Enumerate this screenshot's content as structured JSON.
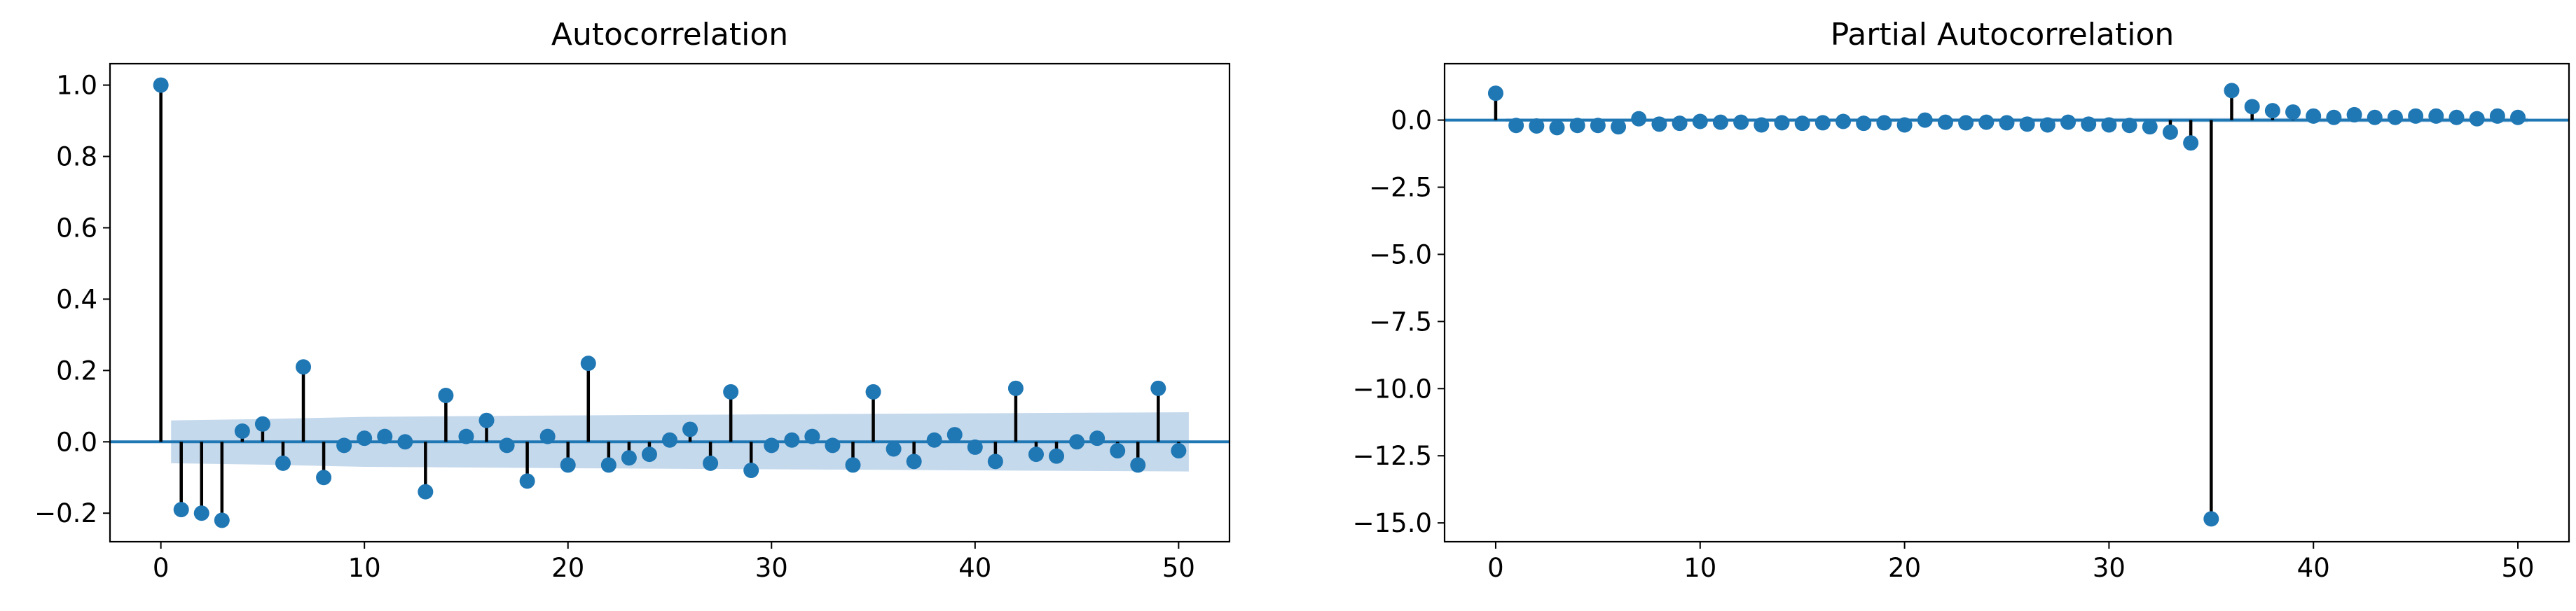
{
  "chart_data": [
    {
      "type": "stem",
      "title": "Autocorrelation",
      "xlabel": "",
      "ylabel": "",
      "xlim": [
        -2.5,
        52.5
      ],
      "ylim": [
        -0.28,
        1.06
      ],
      "xticks": [
        0,
        10,
        20,
        30,
        40,
        50
      ],
      "xtick_labels": [
        "0",
        "10",
        "20",
        "30",
        "40",
        "50"
      ],
      "yticks": [
        -0.2,
        0.0,
        0.2,
        0.4,
        0.6,
        0.8,
        1.0
      ],
      "ytick_labels": [
        "−0.2",
        "0.0",
        "0.2",
        "0.4",
        "0.6",
        "0.8",
        "1.0"
      ],
      "grid": false,
      "series": [
        {
          "x": [
            0,
            1,
            2,
            3,
            4,
            5,
            6,
            7,
            8,
            9,
            10,
            11,
            12,
            13,
            14,
            15,
            16,
            17,
            18,
            19,
            20,
            21,
            22,
            23,
            24,
            25,
            26,
            27,
            28,
            29,
            30,
            31,
            32,
            33,
            34,
            35,
            36,
            37,
            38,
            39,
            40,
            41,
            42,
            43,
            44,
            45,
            46,
            47,
            48,
            49,
            50
          ],
          "values": [
            1.0,
            -0.19,
            -0.2,
            -0.22,
            0.03,
            0.05,
            -0.06,
            0.21,
            -0.1,
            -0.01,
            0.01,
            0.015,
            0.0,
            -0.14,
            0.13,
            0.015,
            0.06,
            -0.01,
            -0.11,
            0.015,
            -0.065,
            0.22,
            -0.065,
            -0.045,
            -0.035,
            0.005,
            0.035,
            -0.06,
            0.14,
            -0.08,
            -0.01,
            0.005,
            0.015,
            -0.01,
            -0.065,
            0.14,
            -0.02,
            -0.055,
            0.005,
            0.02,
            -0.015,
            -0.055,
            0.15,
            -0.035,
            -0.04,
            0.0,
            0.01,
            -0.025,
            -0.065,
            0.15,
            -0.025
          ]
        }
      ],
      "confidence_band": {
        "x": [
          0.5,
          5,
          10,
          20,
          30,
          40,
          50.5
        ],
        "upper": [
          0.06,
          0.064,
          0.07,
          0.074,
          0.077,
          0.08,
          0.083
        ],
        "lower": [
          -0.06,
          -0.064,
          -0.07,
          -0.074,
          -0.077,
          -0.08,
          -0.083
        ]
      },
      "colors": {
        "marker": "#1f77b4",
        "stem": "#000000",
        "band": "#c5d9ec",
        "baseline": "#1f77b4"
      }
    },
    {
      "type": "stem",
      "title": "Partial Autocorrelation",
      "xlabel": "",
      "ylabel": "",
      "xlim": [
        -2.5,
        52.5
      ],
      "ylim": [
        -15.7,
        2.1
      ],
      "xticks": [
        0,
        10,
        20,
        30,
        40,
        50
      ],
      "xtick_labels": [
        "0",
        "10",
        "20",
        "30",
        "40",
        "50"
      ],
      "yticks": [
        -15.0,
        -12.5,
        -10.0,
        -7.5,
        -5.0,
        -2.5,
        0.0
      ],
      "ytick_labels": [
        "−15.0",
        "−12.5",
        "−10.0",
        "−7.5",
        "−5.0",
        "−2.5",
        "0.0"
      ],
      "grid": false,
      "series": [
        {
          "x": [
            0,
            1,
            2,
            3,
            4,
            5,
            6,
            7,
            8,
            9,
            10,
            11,
            12,
            13,
            14,
            15,
            16,
            17,
            18,
            19,
            20,
            21,
            22,
            23,
            24,
            25,
            26,
            27,
            28,
            29,
            30,
            31,
            32,
            33,
            34,
            35,
            36,
            37,
            38,
            39,
            40,
            41,
            42,
            43,
            44,
            45,
            46,
            47,
            48,
            49,
            50
          ],
          "values": [
            1.0,
            -0.2,
            -0.22,
            -0.28,
            -0.2,
            -0.2,
            -0.25,
            0.05,
            -0.15,
            -0.12,
            -0.05,
            -0.08,
            -0.08,
            -0.18,
            -0.1,
            -0.12,
            -0.1,
            -0.05,
            -0.12,
            -0.1,
            -0.18,
            0.0,
            -0.08,
            -0.1,
            -0.08,
            -0.1,
            -0.15,
            -0.18,
            -0.08,
            -0.15,
            -0.18,
            -0.2,
            -0.25,
            -0.45,
            -0.85,
            -14.85,
            1.1,
            0.5,
            0.35,
            0.3,
            0.15,
            0.1,
            0.2,
            0.1,
            0.1,
            0.15,
            0.15,
            0.1,
            0.05,
            0.15,
            0.1
          ]
        }
      ],
      "confidence_band": {
        "x": [
          0.5,
          10,
          20,
          30,
          40,
          50.5
        ],
        "upper": [
          0.06,
          0.065,
          0.07,
          0.075,
          0.08,
          0.083
        ],
        "lower": [
          -0.06,
          -0.065,
          -0.07,
          -0.075,
          -0.08,
          -0.083
        ]
      },
      "colors": {
        "marker": "#1f77b4",
        "stem": "#000000",
        "band": "#c5d9ec",
        "baseline": "#1f77b4"
      }
    }
  ]
}
